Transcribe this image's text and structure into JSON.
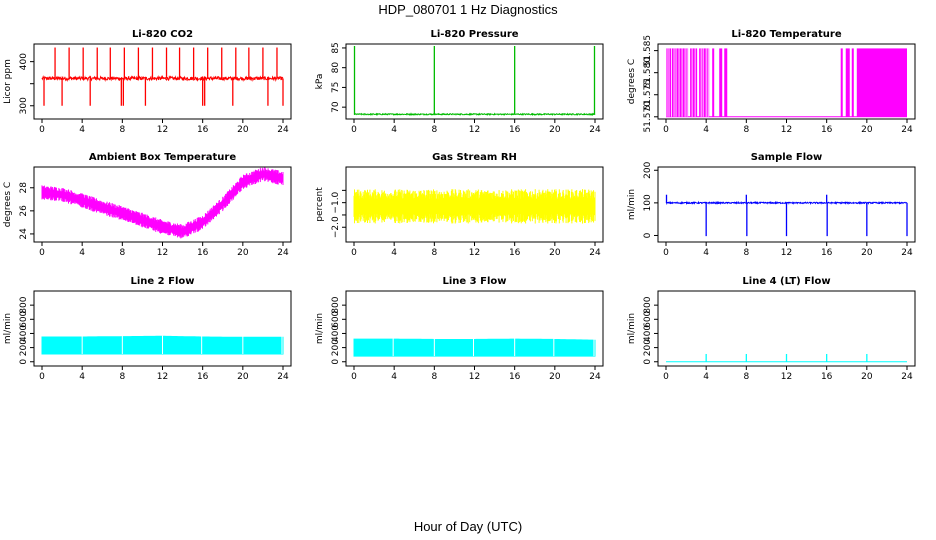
{
  "figure": {
    "title": "HDP_080701  1 Hz Diagnostics",
    "xlabel": "Hour of Day (UTC)"
  },
  "chart_data": [
    {
      "id": "co2",
      "type": "line",
      "title": "Li-820 CO2",
      "ylabel": "Licor ppm",
      "color": "#ff0000",
      "xlim": [
        0,
        24
      ],
      "ylim": [
        270,
        440
      ],
      "xticks": [
        0,
        4,
        8,
        12,
        16,
        20,
        24
      ],
      "yticks": [
        300,
        350,
        400
      ],
      "yticklabels": [
        "300",
        "",
        "400"
      ],
      "baseline": 362,
      "noise": 4,
      "style": "spiky",
      "spikes_up": [
        1.3,
        2.7,
        4.1,
        5.5,
        6.8,
        8.2,
        9.6,
        11.0,
        12.4,
        13.7,
        15.1,
        16.5,
        17.9,
        19.3,
        20.6,
        22.0,
        23.4
      ],
      "spike_up_value": 432,
      "spikes_down": [
        0.2,
        2.0,
        4.8,
        7.9,
        8.1,
        10.3,
        16.0,
        16.2,
        19.0,
        22.5,
        24.0
      ],
      "spike_down_value": 300
    },
    {
      "id": "pressure",
      "type": "line",
      "title": "Li-820 Pressure",
      "ylabel": "kPa",
      "color": "#00bb00",
      "xlim": [
        0,
        24
      ],
      "ylim": [
        67,
        86
      ],
      "xticks": [
        0,
        4,
        8,
        12,
        16,
        20,
        24
      ],
      "yticks": [
        70,
        75,
        80,
        85
      ],
      "yticklabels": [
        "70",
        "75",
        "80",
        "85"
      ],
      "baseline": 68.2,
      "noise": 0.15,
      "style": "spiky",
      "spikes_up": [
        0.05,
        8.0,
        16.0,
        23.95
      ],
      "spike_up_value": 85.5,
      "spikes_down": [],
      "spike_down_value": 68
    },
    {
      "id": "temperature",
      "type": "line",
      "title": "Li-820 Temperature",
      "ylabel": "degrees C",
      "color": "#ff00ff",
      "xlim": [
        0,
        24
      ],
      "ylim": [
        51.5695,
        51.5865
      ],
      "xticks": [
        0,
        4,
        8,
        12,
        16,
        20,
        24
      ],
      "yticks": [
        51.57,
        51.575,
        51.58,
        51.585
      ],
      "yticklabels": [
        "51.570",
        "51.575",
        "51.580",
        "51.585"
      ],
      "style": "binary",
      "low": 51.57,
      "high": 51.5855,
      "bands": [
        [
          0,
          2.2
        ],
        [
          2.4,
          3.1
        ],
        [
          3.3,
          4.3
        ],
        [
          4.6,
          4.8
        ],
        [
          5.3,
          5.6
        ],
        [
          5.8,
          6.1
        ],
        [
          17.4,
          17.6
        ],
        [
          17.9,
          18.3
        ],
        [
          18.5,
          18.7
        ],
        [
          19.0,
          24.0
        ]
      ],
      "band_lines": [
        0.1,
        0.3,
        0.55,
        0.8,
        1.0,
        1.3,
        1.6,
        1.9,
        2.1,
        2.6,
        2.9,
        3.5,
        3.7,
        4.0,
        4.2
      ]
    },
    {
      "id": "ambient",
      "type": "line",
      "title": "Ambient Box Temperature",
      "ylabel": "degrees C",
      "color": "#ff00ff",
      "xlim": [
        0,
        24
      ],
      "ylim": [
        23.3,
        29.8
      ],
      "xticks": [
        0,
        4,
        8,
        12,
        16,
        20,
        24
      ],
      "yticks": [
        24,
        26,
        28
      ],
      "yticklabels": [
        "24",
        "26",
        "28"
      ],
      "style": "band",
      "curve_x": [
        0,
        2,
        4,
        6,
        8,
        10,
        12,
        14,
        16,
        18,
        20,
        22,
        24
      ],
      "curve_y": [
        27.6,
        27.4,
        26.9,
        26.3,
        25.8,
        25.2,
        24.6,
        24.2,
        25.0,
        26.6,
        28.5,
        29.2,
        28.8
      ],
      "band_width": 0.9
    },
    {
      "id": "rh",
      "type": "line",
      "title": "Gas Stream RH",
      "ylabel": "percent",
      "color": "#ffff00",
      "xlim": [
        0,
        24
      ],
      "ylim": [
        -2.6,
        0.45
      ],
      "xticks": [
        0,
        4,
        8,
        12,
        16,
        20,
        24
      ],
      "yticks": [
        -2.0,
        -1.5,
        -1.0,
        -0.5
      ],
      "yticklabels": [
        "−2.0",
        "",
        "−1.0",
        ""
      ],
      "style": "band",
      "curve_x": [
        0,
        24
      ],
      "curve_y": [
        -1.15,
        -1.15
      ],
      "band_width": 1.0
    },
    {
      "id": "sample",
      "type": "line",
      "title": "Sample Flow",
      "ylabel": "ml/min",
      "color": "#0000ff",
      "xlim": [
        0,
        24
      ],
      "ylim": [
        -20,
        210
      ],
      "xticks": [
        0,
        4,
        8,
        12,
        16,
        20,
        24
      ],
      "yticks": [
        0,
        100,
        200
      ],
      "yticklabels": [
        "0",
        "100",
        "200"
      ],
      "baseline": 100,
      "noise": 2,
      "style": "spiky",
      "spikes_up": [
        0.05,
        8.0,
        16.0
      ],
      "spike_up_value": 125,
      "spikes_down": [
        4.0,
        8.05,
        12.0,
        16.05,
        20.0,
        24.0
      ],
      "spike_down_value": -2
    },
    {
      "id": "line2",
      "type": "line",
      "title": "Line 2 Flow",
      "ylabel": "ml/min",
      "color": "#00ffff",
      "xlim": [
        0,
        24
      ],
      "ylim": [
        -60,
        1000
      ],
      "xticks": [
        0,
        4,
        8,
        12,
        16,
        20,
        24
      ],
      "yticks": [
        0,
        200,
        400,
        600,
        800
      ],
      "yticklabels": [
        "0",
        "200",
        "400",
        "600",
        "800"
      ],
      "style": "block",
      "low": 110,
      "high_x": [
        0,
        4,
        8,
        12,
        16,
        20,
        24
      ],
      "high_y": [
        350,
        350,
        355,
        360,
        350,
        345,
        345
      ],
      "gaps": [
        4.0,
        8.0,
        12.0,
        15.9,
        20.0,
        23.9
      ]
    },
    {
      "id": "line3",
      "type": "line",
      "title": "Line 3 Flow",
      "ylabel": "ml/min",
      "color": "#00ffff",
      "xlim": [
        0,
        24
      ],
      "ylim": [
        -60,
        1000
      ],
      "xticks": [
        0,
        4,
        8,
        12,
        16,
        20,
        24
      ],
      "yticks": [
        0,
        200,
        400,
        600,
        800
      ],
      "yticklabels": [
        "0",
        "200",
        "400",
        "600",
        "800"
      ],
      "style": "block",
      "low": 80,
      "high_x": [
        0,
        4,
        8,
        12,
        16,
        20,
        24
      ],
      "high_y": [
        320,
        320,
        315,
        315,
        320,
        315,
        305
      ],
      "gaps": [
        3.9,
        8.0,
        11.9,
        16.0,
        19.9,
        23.9
      ]
    },
    {
      "id": "line4",
      "type": "line",
      "title": "Line 4 (LT) Flow",
      "ylabel": "ml/min",
      "color": "#00ffff",
      "xlim": [
        0,
        24
      ],
      "ylim": [
        -60,
        1000
      ],
      "xticks": [
        0,
        4,
        8,
        12,
        16,
        20,
        24
      ],
      "yticks": [
        0,
        200,
        400,
        600,
        800
      ],
      "yticklabels": [
        "0",
        "200",
        "400",
        "600",
        "800"
      ],
      "baseline": 0,
      "noise": 0,
      "style": "spiky",
      "spikes_up": [
        4.0,
        8.0,
        12.0,
        16.0,
        20.0
      ],
      "spike_up_value": 110,
      "spikes_down": [],
      "spike_down_value": 0
    }
  ]
}
